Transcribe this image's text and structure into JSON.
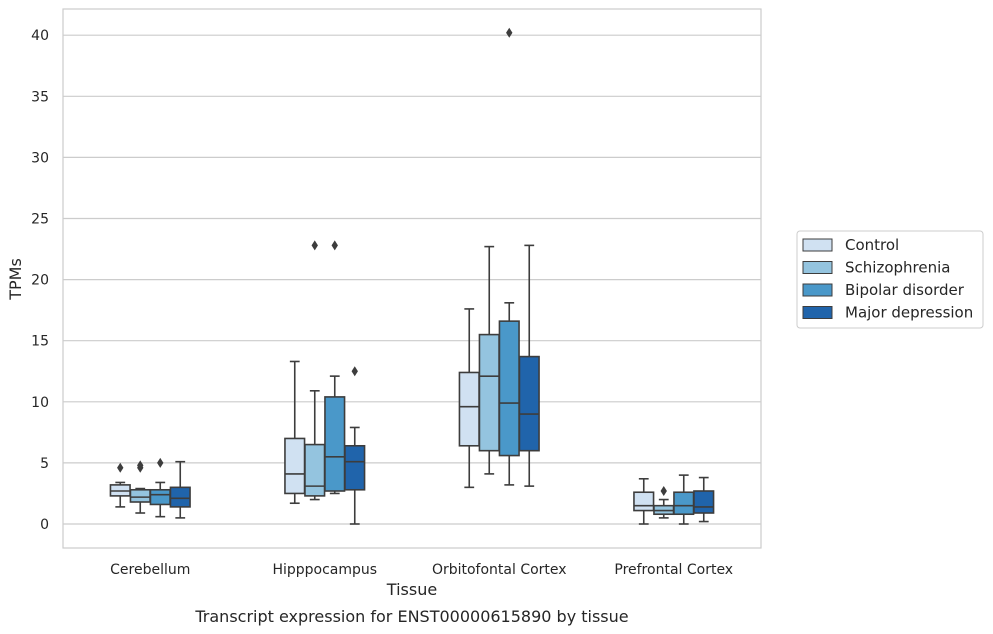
{
  "chart_data": {
    "type": "box",
    "title": "",
    "caption": "Transcript expression for ENST00000615890 by tissue",
    "xlabel": "Tissue",
    "ylabel": "TPMs",
    "ylim": [
      -1.9,
      42.2
    ],
    "yticks": [
      0,
      5,
      10,
      15,
      20,
      25,
      30,
      35,
      40
    ],
    "grid": "horizontal",
    "legend_position": "right",
    "categories": [
      "Cerebellum",
      "Hipppocampus",
      "Orbitofontal Cortex",
      "Prefrontal Cortex"
    ],
    "series": [
      {
        "name": "Control",
        "color": "#d0e1f2",
        "boxes": [
          {
            "whisker_low": 1.4,
            "q1": 2.3,
            "median": 2.7,
            "q3": 3.2,
            "whisker_high": 3.4,
            "outliers": [
              4.6
            ]
          },
          {
            "whisker_low": 1.7,
            "q1": 2.5,
            "median": 4.1,
            "q3": 7.0,
            "whisker_high": 13.3,
            "outliers": []
          },
          {
            "whisker_low": 3.0,
            "q1": 6.4,
            "median": 9.6,
            "q3": 12.4,
            "whisker_high": 17.6,
            "outliers": []
          },
          {
            "whisker_low": 0.0,
            "q1": 1.1,
            "median": 1.5,
            "q3": 2.6,
            "whisker_high": 3.7,
            "outliers": []
          }
        ]
      },
      {
        "name": "Schizophrenia",
        "color": "#94c4df",
        "boxes": [
          {
            "whisker_low": 0.9,
            "q1": 1.8,
            "median": 2.2,
            "q3": 2.8,
            "whisker_high": 2.9,
            "outliers": [
              4.6,
              4.8
            ]
          },
          {
            "whisker_low": 2.0,
            "q1": 2.3,
            "median": 3.1,
            "q3": 6.5,
            "whisker_high": 10.9,
            "outliers": [
              22.8
            ]
          },
          {
            "whisker_low": 4.1,
            "q1": 6.0,
            "median": 12.1,
            "q3": 15.5,
            "whisker_high": 22.7,
            "outliers": []
          },
          {
            "whisker_low": 0.5,
            "q1": 0.8,
            "median": 1.1,
            "q3": 1.5,
            "whisker_high": 2.0,
            "outliers": [
              2.7
            ]
          }
        ]
      },
      {
        "name": "Bipolar disorder",
        "color": "#4a98c9",
        "boxes": [
          {
            "whisker_low": 0.6,
            "q1": 1.6,
            "median": 2.4,
            "q3": 2.8,
            "whisker_high": 3.4,
            "outliers": [
              5.0
            ]
          },
          {
            "whisker_low": 2.5,
            "q1": 2.7,
            "median": 5.5,
            "q3": 10.4,
            "whisker_high": 12.1,
            "outliers": [
              22.8
            ]
          },
          {
            "whisker_low": 3.2,
            "q1": 5.6,
            "median": 9.9,
            "q3": 16.6,
            "whisker_high": 18.1,
            "outliers": [
              40.2
            ]
          },
          {
            "whisker_low": 0.0,
            "q1": 0.8,
            "median": 1.5,
            "q3": 2.6,
            "whisker_high": 4.0,
            "outliers": []
          }
        ]
      },
      {
        "name": "Major depression",
        "color": "#2064ab",
        "boxes": [
          {
            "whisker_low": 0.5,
            "q1": 1.4,
            "median": 2.1,
            "q3": 3.0,
            "whisker_high": 5.1,
            "outliers": []
          },
          {
            "whisker_low": 0.0,
            "q1": 2.8,
            "median": 5.1,
            "q3": 6.4,
            "whisker_high": 7.9,
            "outliers": [
              12.5
            ]
          },
          {
            "whisker_low": 3.1,
            "q1": 6.0,
            "median": 9.0,
            "q3": 13.7,
            "whisker_high": 22.8,
            "outliers": []
          },
          {
            "whisker_low": 0.2,
            "q1": 0.9,
            "median": 1.4,
            "q3": 2.7,
            "whisker_high": 3.8,
            "outliers": []
          }
        ]
      }
    ]
  }
}
